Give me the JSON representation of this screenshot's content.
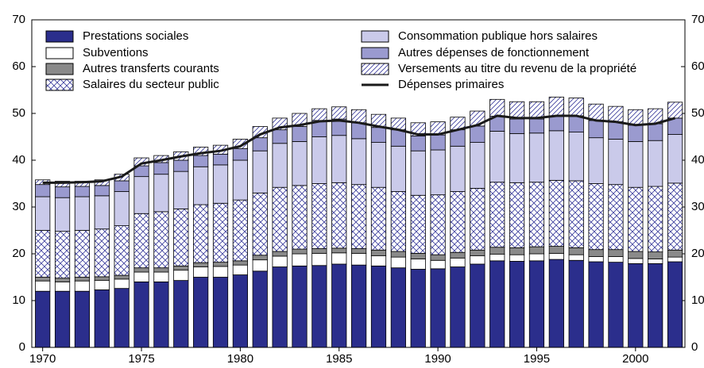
{
  "chart_data": {
    "type": "bar",
    "stacked": true,
    "x": [
      1970,
      1971,
      1972,
      1973,
      1974,
      1975,
      1976,
      1977,
      1978,
      1979,
      1980,
      1981,
      1982,
      1983,
      1984,
      1985,
      1986,
      1987,
      1988,
      1989,
      1990,
      1991,
      1992,
      1993,
      1994,
      1995,
      1996,
      1997,
      1998,
      1999,
      2000,
      2001,
      2002
    ],
    "xlim": [
      1969.45,
      2002.5
    ],
    "xticks": [
      1970,
      1975,
      1980,
      1985,
      1990,
      1995,
      2000
    ],
    "ylim": [
      0,
      70
    ],
    "yticks": [
      0,
      10,
      20,
      30,
      40,
      50,
      60,
      70
    ],
    "series": [
      {
        "name": "Prestations sociales",
        "color": "#2b2e8c",
        "values": [
          12,
          12,
          12,
          12.3,
          12.6,
          14,
          14,
          14.3,
          15,
          15,
          15.5,
          16.3,
          17.2,
          17.4,
          17.5,
          17.8,
          17.6,
          17.4,
          17,
          16.7,
          16.8,
          17.2,
          17.8,
          18.5,
          18.4,
          18.5,
          18.8,
          18.6,
          18.3,
          18.2,
          17.9,
          17.9,
          18.3
        ]
      },
      {
        "name": "Subventions",
        "color": "#ffffff",
        "values": [
          2.2,
          2,
          2.2,
          2,
          2,
          2.1,
          2.1,
          2.2,
          2.2,
          2.3,
          2.1,
          2.4,
          2.3,
          2.6,
          2.6,
          2.4,
          2.5,
          2.2,
          2.3,
          2.2,
          1.8,
          1.9,
          1.8,
          1.4,
          1.4,
          1.5,
          1.3,
          1.2,
          1.1,
          1.2,
          1.1,
          1,
          1
        ]
      },
      {
        "name": "Autres transferts courants",
        "color": "#8a8a8a",
        "values": [
          0.8,
          0.8,
          0.8,
          0.8,
          0.8,
          0.9,
          0.9,
          0.9,
          0.9,
          0.9,
          0.9,
          1,
          1,
          1,
          1,
          1,
          1,
          1.2,
          1.2,
          1.2,
          1.2,
          1.2,
          1.2,
          1.5,
          1.5,
          1.5,
          1.5,
          1.5,
          1.5,
          1.5,
          1.5,
          1.5,
          1.5
        ]
      },
      {
        "name": "Salaires du secteur public",
        "color": "#3a3c9c",
        "hatch": "cross",
        "values": [
          10,
          10,
          10,
          10.2,
          10.6,
          11.6,
          12,
          12.2,
          12.4,
          12.6,
          13,
          13.3,
          13.7,
          13.6,
          13.9,
          14,
          13.7,
          13.4,
          12.8,
          12.4,
          12.8,
          13,
          13.2,
          13.9,
          13.9,
          13.8,
          14.1,
          14.3,
          14.1,
          13.9,
          13.7,
          14,
          14.3
        ]
      },
      {
        "name": "Consommation publique hors salaires",
        "color": "#cacaea",
        "values": [
          7.2,
          7.2,
          7.2,
          7.1,
          7.3,
          7.9,
          8,
          8,
          8.1,
          8.2,
          8.5,
          9,
          9.4,
          9.4,
          10,
          10.1,
          9.8,
          9.6,
          9.7,
          9.5,
          9.6,
          9.7,
          9.8,
          10.9,
          10.5,
          10.5,
          10.6,
          10.4,
          9.8,
          9.7,
          9.8,
          9.8,
          10.4
        ]
      },
      {
        "name": "Autres dépenses de fonctionnement",
        "color": "#9a9acf",
        "values": [
          2.6,
          2.3,
          2.2,
          2.2,
          2.3,
          2.3,
          2.5,
          2.4,
          2.4,
          2.3,
          2.5,
          2.8,
          2.9,
          3.2,
          3.5,
          3.5,
          3.4,
          3.2,
          3.5,
          3.2,
          3.2,
          3.5,
          3.5,
          3.2,
          3.1,
          3,
          3.2,
          3.5,
          3.7,
          3.7,
          3.5,
          3.6,
          3.5
        ]
      },
      {
        "name": "Versements au titre du revenu de la propriété",
        "color": "#3a3c9c",
        "hatch": "diagonal",
        "values": [
          1,
          1.2,
          1.1,
          1.2,
          1.4,
          1.7,
          1.5,
          1.8,
          1.8,
          1.9,
          2,
          2.4,
          2.5,
          2.8,
          2.5,
          2.6,
          2.8,
          2.8,
          2.5,
          2.8,
          2.8,
          2.7,
          3.2,
          3.6,
          3.7,
          3.7,
          4,
          3.8,
          3.5,
          3.3,
          3.3,
          3.2,
          3.4
        ]
      },
      {
        "name": "Dépenses primaires",
        "type": "line",
        "color": "#1a1a1a",
        "values": [
          35.2,
          35.2,
          35.3,
          35.5,
          36.5,
          39.3,
          40,
          40.8,
          41.5,
          42,
          43,
          45.5,
          47,
          47.5,
          48.3,
          48.5,
          48,
          47.2,
          46.5,
          45.5,
          45.5,
          46.5,
          47.5,
          49.5,
          49,
          49,
          49.5,
          49.5,
          48.5,
          48.2,
          47.5,
          47.8,
          49
        ]
      }
    ]
  }
}
